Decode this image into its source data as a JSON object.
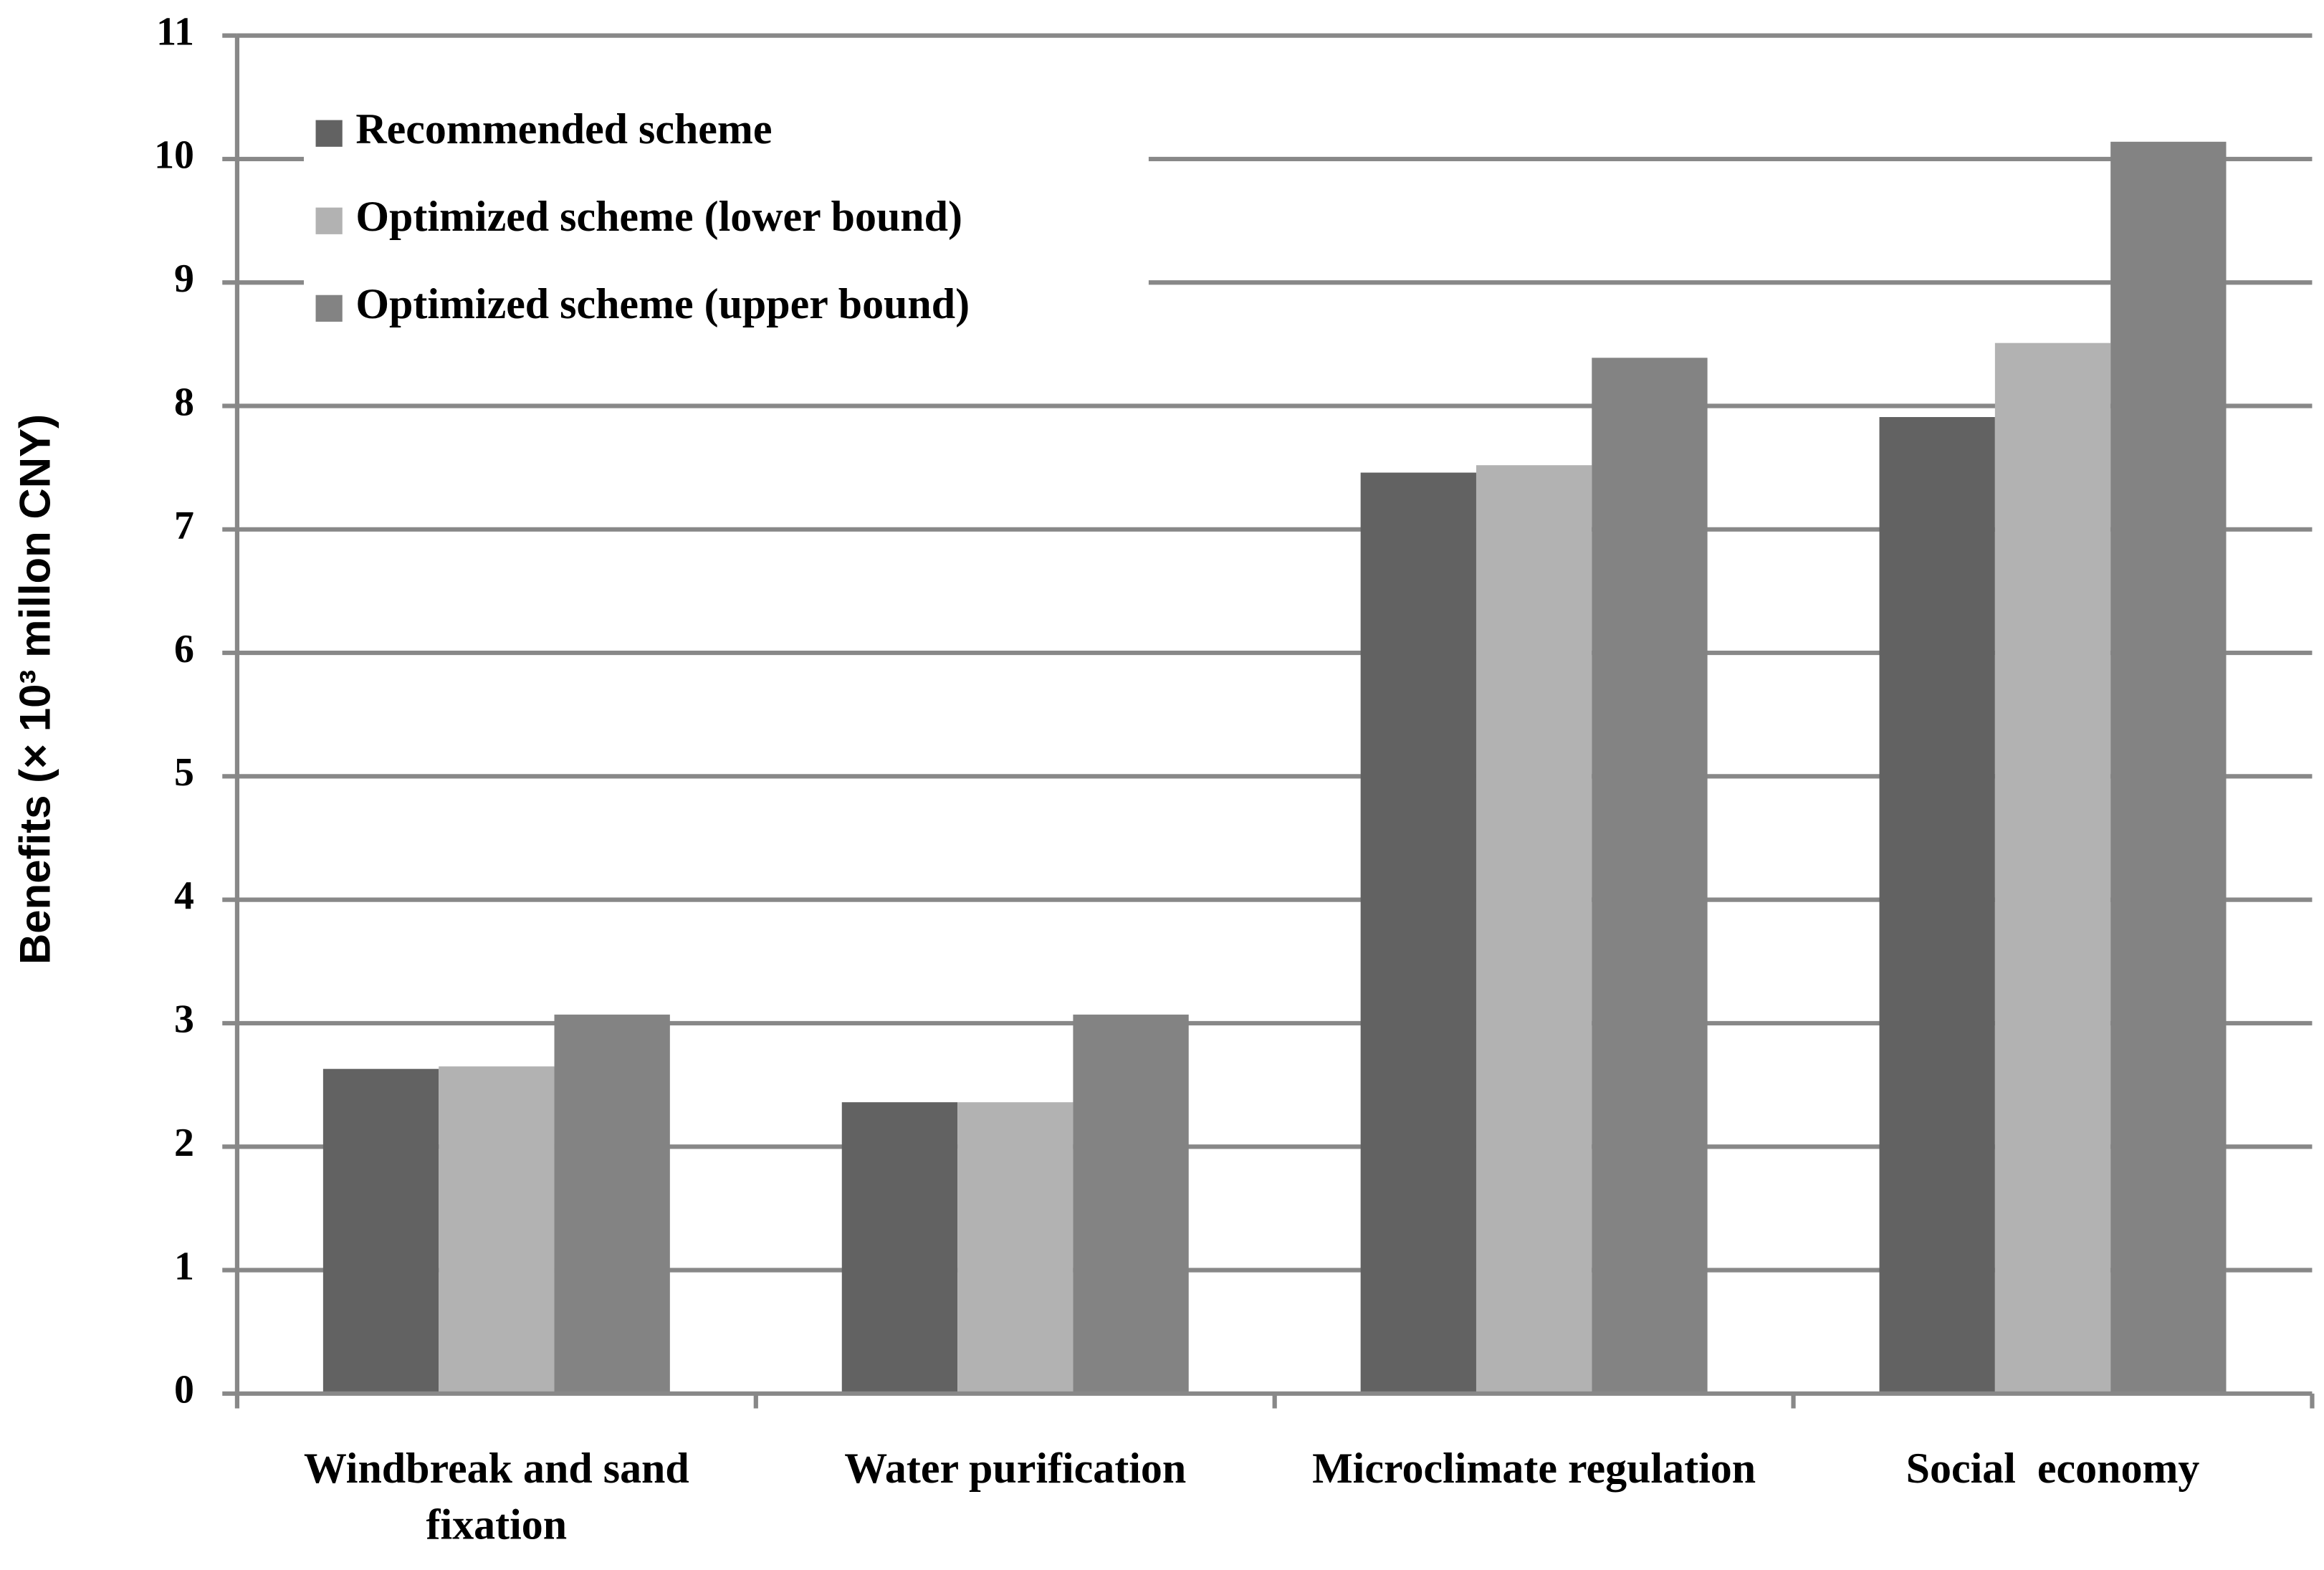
{
  "chart_data": {
    "type": "bar",
    "y_label": "Benefits    (× 10³  millon CNY)",
    "categories": [
      "Windbreak and sand fixation",
      "Water purification",
      "Microclimate regulation",
      "Social  economy"
    ],
    "series": [
      {
        "name": "Recommended scheme",
        "color": "#626262",
        "values": [
          2.63,
          2.36,
          7.46,
          7.91
        ]
      },
      {
        "name": "Optimized scheme (lower bound)",
        "color": "#b2b2b2",
        "values": [
          2.65,
          2.36,
          7.52,
          8.51
        ]
      },
      {
        "name": "Optimized scheme (upper bound)",
        "color": "#838383",
        "values": [
          3.07,
          3.07,
          8.39,
          10.14
        ]
      }
    ],
    "ylim": [
      0,
      11
    ],
    "yticks": [
      0,
      1,
      2,
      3,
      4,
      5,
      6,
      7,
      8,
      9,
      10,
      11
    ],
    "grid": true,
    "legend": "upper left"
  }
}
